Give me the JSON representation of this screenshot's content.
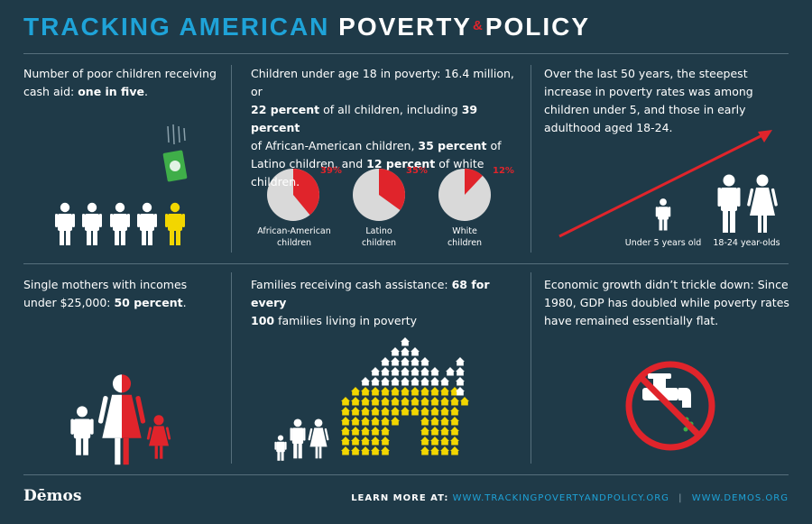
{
  "title": {
    "part1": "TRACKING AMERICAN",
    "part2": "POVERTY",
    "amp": "&",
    "part3": "POLICY"
  },
  "colors": {
    "background": "#1f3a48",
    "blue": "#1fa3d8",
    "red": "#e0242b",
    "yellow": "#f2d600",
    "green": "#3fae49",
    "pie_grey": "#d9d9d9"
  },
  "panel1": {
    "text": "Number of poor children receiving cash aid: ",
    "bold": "one in five",
    "end": "."
  },
  "panel2": {
    "l1": "Children under age 18 in poverty: 16.4 million, or",
    "b1": "22 percent",
    "l2": " of all children, including ",
    "b2": "39 percent",
    "l3": "of African-American children, ",
    "b3": "35 percent",
    "l3b": " of",
    "l4": "Latino children, and ",
    "b4": "12 percent",
    "l4b": " of white children.",
    "pies": [
      {
        "pct_label": "39%",
        "value": 39,
        "cap1": "African-American",
        "cap2": "children"
      },
      {
        "pct_label": "35%",
        "value": 35,
        "cap1": "Latino",
        "cap2": "children"
      },
      {
        "pct_label": "12%",
        "value": 12,
        "cap1": "White",
        "cap2": "children"
      }
    ]
  },
  "panel3": {
    "text": "Over the last 50 years, the steepest increase in poverty rates was among children under 5, and those in early adulthood aged 18-24.",
    "label_under5": "Under 5 years old",
    "label_1824": "18-24 year-olds"
  },
  "panel4": {
    "text": "Single mothers with incomes under $25,000: ",
    "bold": "50 percent",
    "end": "."
  },
  "panel5": {
    "text": "Families receiving cash assistance: ",
    "bold1": "68 for every",
    "bold2": "100",
    "end": " families living in poverty"
  },
  "panel6": {
    "text": "Economic growth didn’t trickle down: Since 1980, GDP has doubled while poverty rates have remained essentially flat."
  },
  "footer": {
    "logo": "Dēmos",
    "learn": "LEARN MORE AT:",
    "link1": "WWW.TRACKINGPOVERTYANDPOLICY.ORG",
    "sep": "|",
    "link2": "WWW.DEMOS.ORG"
  }
}
